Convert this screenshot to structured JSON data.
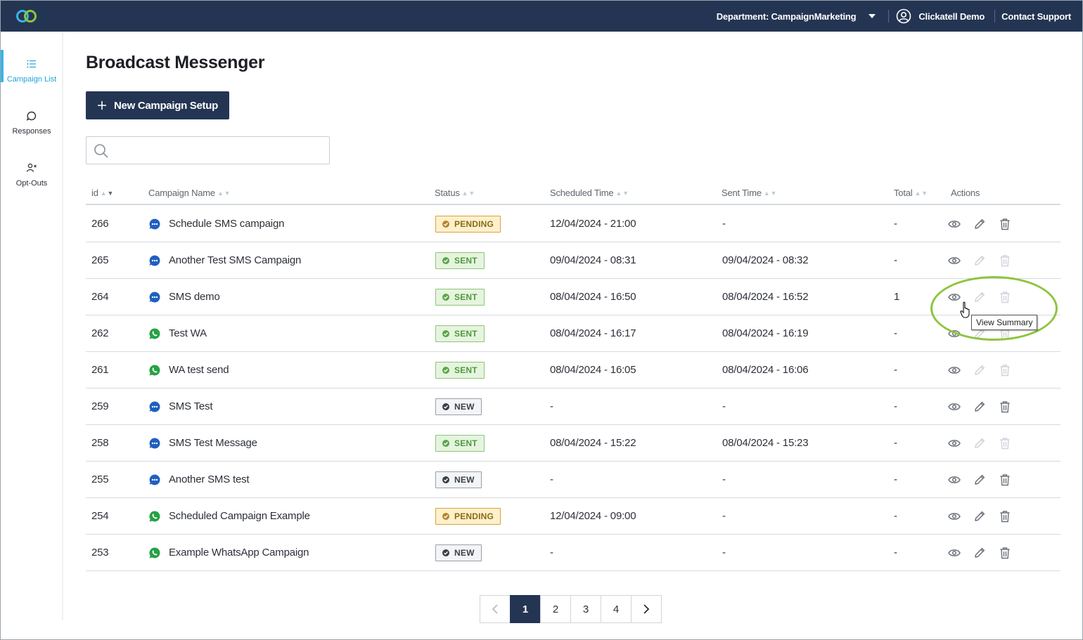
{
  "topbar": {
    "department": "Department: CampaignMarketing",
    "user": "Clickatell Demo",
    "support": "Contact Support"
  },
  "sidebar": {
    "items": [
      {
        "label": "Campaign List",
        "icon": "list-icon"
      },
      {
        "label": "Responses",
        "icon": "chat-bubble-icon"
      },
      {
        "label": "Opt-Outs",
        "icon": "user-remove-icon"
      }
    ]
  },
  "page": {
    "title": "Broadcast Messenger",
    "new_button": "New Campaign Setup",
    "search_placeholder": ""
  },
  "table": {
    "headers": {
      "id": "id",
      "name": "Campaign Name",
      "status": "Status",
      "scheduled": "Scheduled Time",
      "sent": "Sent Time",
      "total": "Total",
      "actions": "Actions"
    },
    "rows": [
      {
        "id": "266",
        "channel": "sms",
        "name": "Schedule SMS campaign",
        "status": "PENDING",
        "scheduled": "12/04/2024 - 21:00",
        "sent": "-",
        "total": "-",
        "editable": true
      },
      {
        "id": "265",
        "channel": "sms",
        "name": "Another Test SMS Campaign",
        "status": "SENT",
        "scheduled": "09/04/2024 - 08:31",
        "sent": "09/04/2024 - 08:32",
        "total": "-",
        "editable": false
      },
      {
        "id": "264",
        "channel": "sms",
        "name": "SMS demo",
        "status": "SENT",
        "scheduled": "08/04/2024 - 16:50",
        "sent": "08/04/2024 - 16:52",
        "total": "1",
        "editable": false
      },
      {
        "id": "262",
        "channel": "whatsapp",
        "name": "Test WA",
        "status": "SENT",
        "scheduled": "08/04/2024 - 16:17",
        "sent": "08/04/2024 - 16:19",
        "total": "-",
        "editable": false
      },
      {
        "id": "261",
        "channel": "whatsapp",
        "name": "WA test send",
        "status": "SENT",
        "scheduled": "08/04/2024 - 16:05",
        "sent": "08/04/2024 - 16:06",
        "total": "-",
        "editable": false
      },
      {
        "id": "259",
        "channel": "sms",
        "name": "SMS Test",
        "status": "NEW",
        "scheduled": "-",
        "sent": "-",
        "total": "-",
        "editable": true
      },
      {
        "id": "258",
        "channel": "sms",
        "name": "SMS Test Message",
        "status": "SENT",
        "scheduled": "08/04/2024 - 15:22",
        "sent": "08/04/2024 - 15:23",
        "total": "-",
        "editable": false
      },
      {
        "id": "255",
        "channel": "sms",
        "name": "Another SMS test",
        "status": "NEW",
        "scheduled": "-",
        "sent": "-",
        "total": "-",
        "editable": true
      },
      {
        "id": "254",
        "channel": "whatsapp",
        "name": "Scheduled Campaign Example",
        "status": "PENDING",
        "scheduled": "12/04/2024 - 09:00",
        "sent": "-",
        "total": "-",
        "editable": true
      },
      {
        "id": "253",
        "channel": "whatsapp",
        "name": "Example WhatsApp Campaign",
        "status": "NEW",
        "scheduled": "-",
        "sent": "-",
        "total": "-",
        "editable": true
      }
    ]
  },
  "tooltip": "View Summary",
  "pagination": {
    "pages": [
      "1",
      "2",
      "3",
      "4"
    ],
    "current": "1"
  },
  "colors": {
    "navy": "#243553",
    "accent": "#3ab3e4",
    "sms_blue": "#1f5fbf",
    "whatsapp_green": "#25a244",
    "highlight": "#8dc53f"
  }
}
